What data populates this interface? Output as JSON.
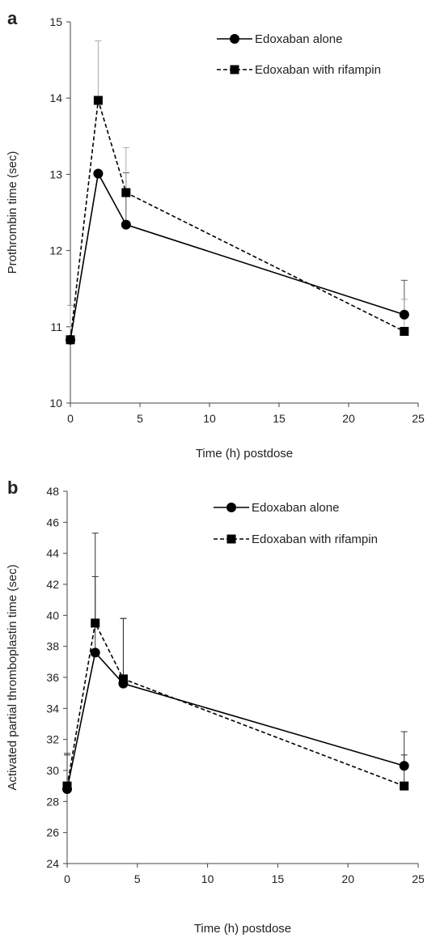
{
  "chart_data": [
    {
      "type": "line",
      "panel_label": "a",
      "xlabel": "Time (h) postdose",
      "ylabel": "Prothrombin time (sec)",
      "xlim": [
        0,
        25
      ],
      "ylim": [
        10,
        15
      ],
      "xticks": [
        0,
        5,
        10,
        15,
        20,
        25
      ],
      "yticks": [
        10,
        11,
        12,
        13,
        14,
        15
      ],
      "grid": false,
      "legend": "top-right",
      "series": [
        {
          "name": "Edoxaban alone",
          "marker": "circle",
          "line_style": "solid",
          "color": "#000000",
          "error_color": "#555555",
          "x": [
            0,
            2,
            4,
            24
          ],
          "y": [
            10.83,
            13.01,
            12.34,
            11.16
          ],
          "err": [
            0.45,
            0.0,
            0.68,
            0.45
          ]
        },
        {
          "name": "Edoxaban with rifampin",
          "marker": "square",
          "line_style": "dashed",
          "color": "#000000",
          "error_color": "#aaaaaa",
          "x": [
            0,
            2,
            4,
            24
          ],
          "y": [
            10.83,
            13.97,
            12.76,
            10.94
          ],
          "err": [
            0.45,
            0.78,
            0.59,
            0.42
          ]
        }
      ]
    },
    {
      "type": "line",
      "panel_label": "b",
      "xlabel": "Time (h) postdose",
      "ylabel": "Activated partial thromboplastin time (sec)",
      "xlim": [
        0,
        25
      ],
      "ylim": [
        24,
        48
      ],
      "xticks": [
        0,
        5,
        10,
        15,
        20,
        25
      ],
      "yticks": [
        24,
        26,
        28,
        30,
        32,
        34,
        36,
        38,
        40,
        42,
        44,
        46,
        48
      ],
      "grid": false,
      "legend": "top-right",
      "series": [
        {
          "name": "Edoxaban alone",
          "marker": "circle",
          "line_style": "solid",
          "color": "#000000",
          "error_color": "#333333",
          "x": [
            0,
            2,
            4,
            24
          ],
          "y": [
            28.8,
            37.6,
            35.6,
            30.3
          ],
          "err": [
            2.2,
            4.9,
            4.2,
            2.2
          ]
        },
        {
          "name": "Edoxaban with rifampin",
          "marker": "square",
          "line_style": "dashed",
          "color": "#000000",
          "error_color": "#333333",
          "x": [
            0,
            2,
            4,
            24
          ],
          "y": [
            29.0,
            39.5,
            35.9,
            29.0
          ],
          "err": [
            2.1,
            5.8,
            3.9,
            2.0
          ]
        }
      ]
    }
  ]
}
